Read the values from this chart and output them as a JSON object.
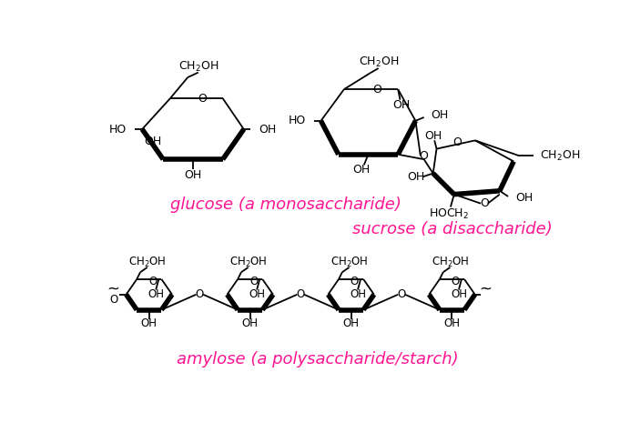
{
  "bg_color": "#ffffff",
  "magenta": "#FF1493",
  "black": "#000000",
  "label_glucose": "glucose (a monosaccharide)",
  "label_sucrose": "sucrose (a disaccharide)",
  "label_amylose": "amylose (a polysaccharide/starch)",
  "label_fontsize": 13,
  "chem_fontsize": 9,
  "figsize": [
    6.81,
    4.65
  ],
  "dpi": 100,
  "lw_thin": 1.3,
  "lw_bold": 4.0
}
